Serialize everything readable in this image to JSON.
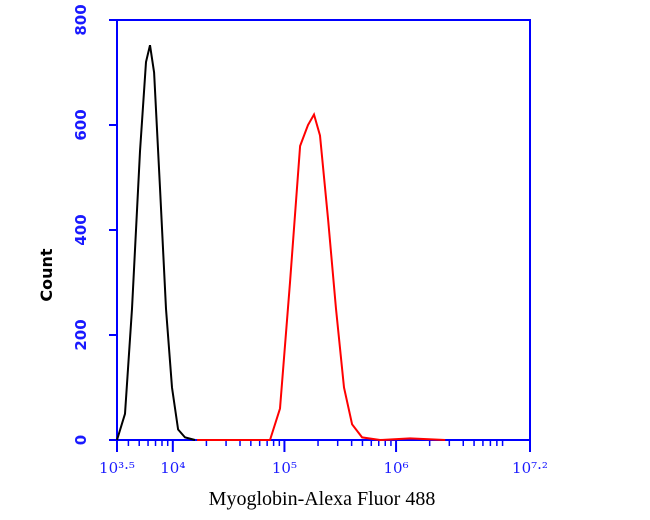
{
  "chart_data": {
    "type": "line",
    "xlabel": "Myoglobin-Alexa Fluor 488",
    "ylabel": "Count",
    "xscale": "log",
    "xlim": [
      3162,
      15849000
    ],
    "ylim": [
      0,
      800
    ],
    "xticks": [
      {
        "value": 3162,
        "label": "10³·⁵"
      },
      {
        "value": 10000,
        "label": "10⁴"
      },
      {
        "value": 100000,
        "label": "10⁵"
      },
      {
        "value": 1000000,
        "label": "10⁶"
      },
      {
        "value": 15849000,
        "label": "10⁷·²"
      }
    ],
    "xminorticks": [
      4000,
      5000,
      6000,
      7000,
      8000,
      9000,
      20000,
      30000,
      40000,
      50000,
      60000,
      70000,
      80000,
      90000,
      200000,
      300000,
      400000,
      500000,
      600000,
      700000,
      800000,
      900000,
      2000000,
      3000000,
      4000000,
      5000000,
      6000000,
      7000000,
      8000000,
      9000000
    ],
    "yticks": [
      0,
      200,
      400,
      600,
      800
    ],
    "axis_color": "#0000ff",
    "series": [
      {
        "color": "#000000",
        "x": [
          3162,
          3733,
          4305,
          5082,
          5754,
          6252,
          6792,
          7674,
          8690,
          9840,
          11143,
          12853,
          15812
        ],
        "values": [
          0,
          50,
          250,
          550,
          720,
          752,
          700,
          480,
          250,
          100,
          20,
          5,
          0
        ]
      },
      {
        "color": "#ff0000",
        "x": [
          16482,
          74302,
          91201,
          112202,
          138038,
          162555,
          184077,
          208449,
          246037,
          289734,
          341979,
          403645,
          496592,
          719449,
          1336596,
          2754229
        ],
        "values": [
          0,
          0,
          60,
          300,
          560,
          600,
          620,
          580,
          420,
          250,
          100,
          30,
          5,
          0,
          3,
          0
        ]
      }
    ]
  }
}
